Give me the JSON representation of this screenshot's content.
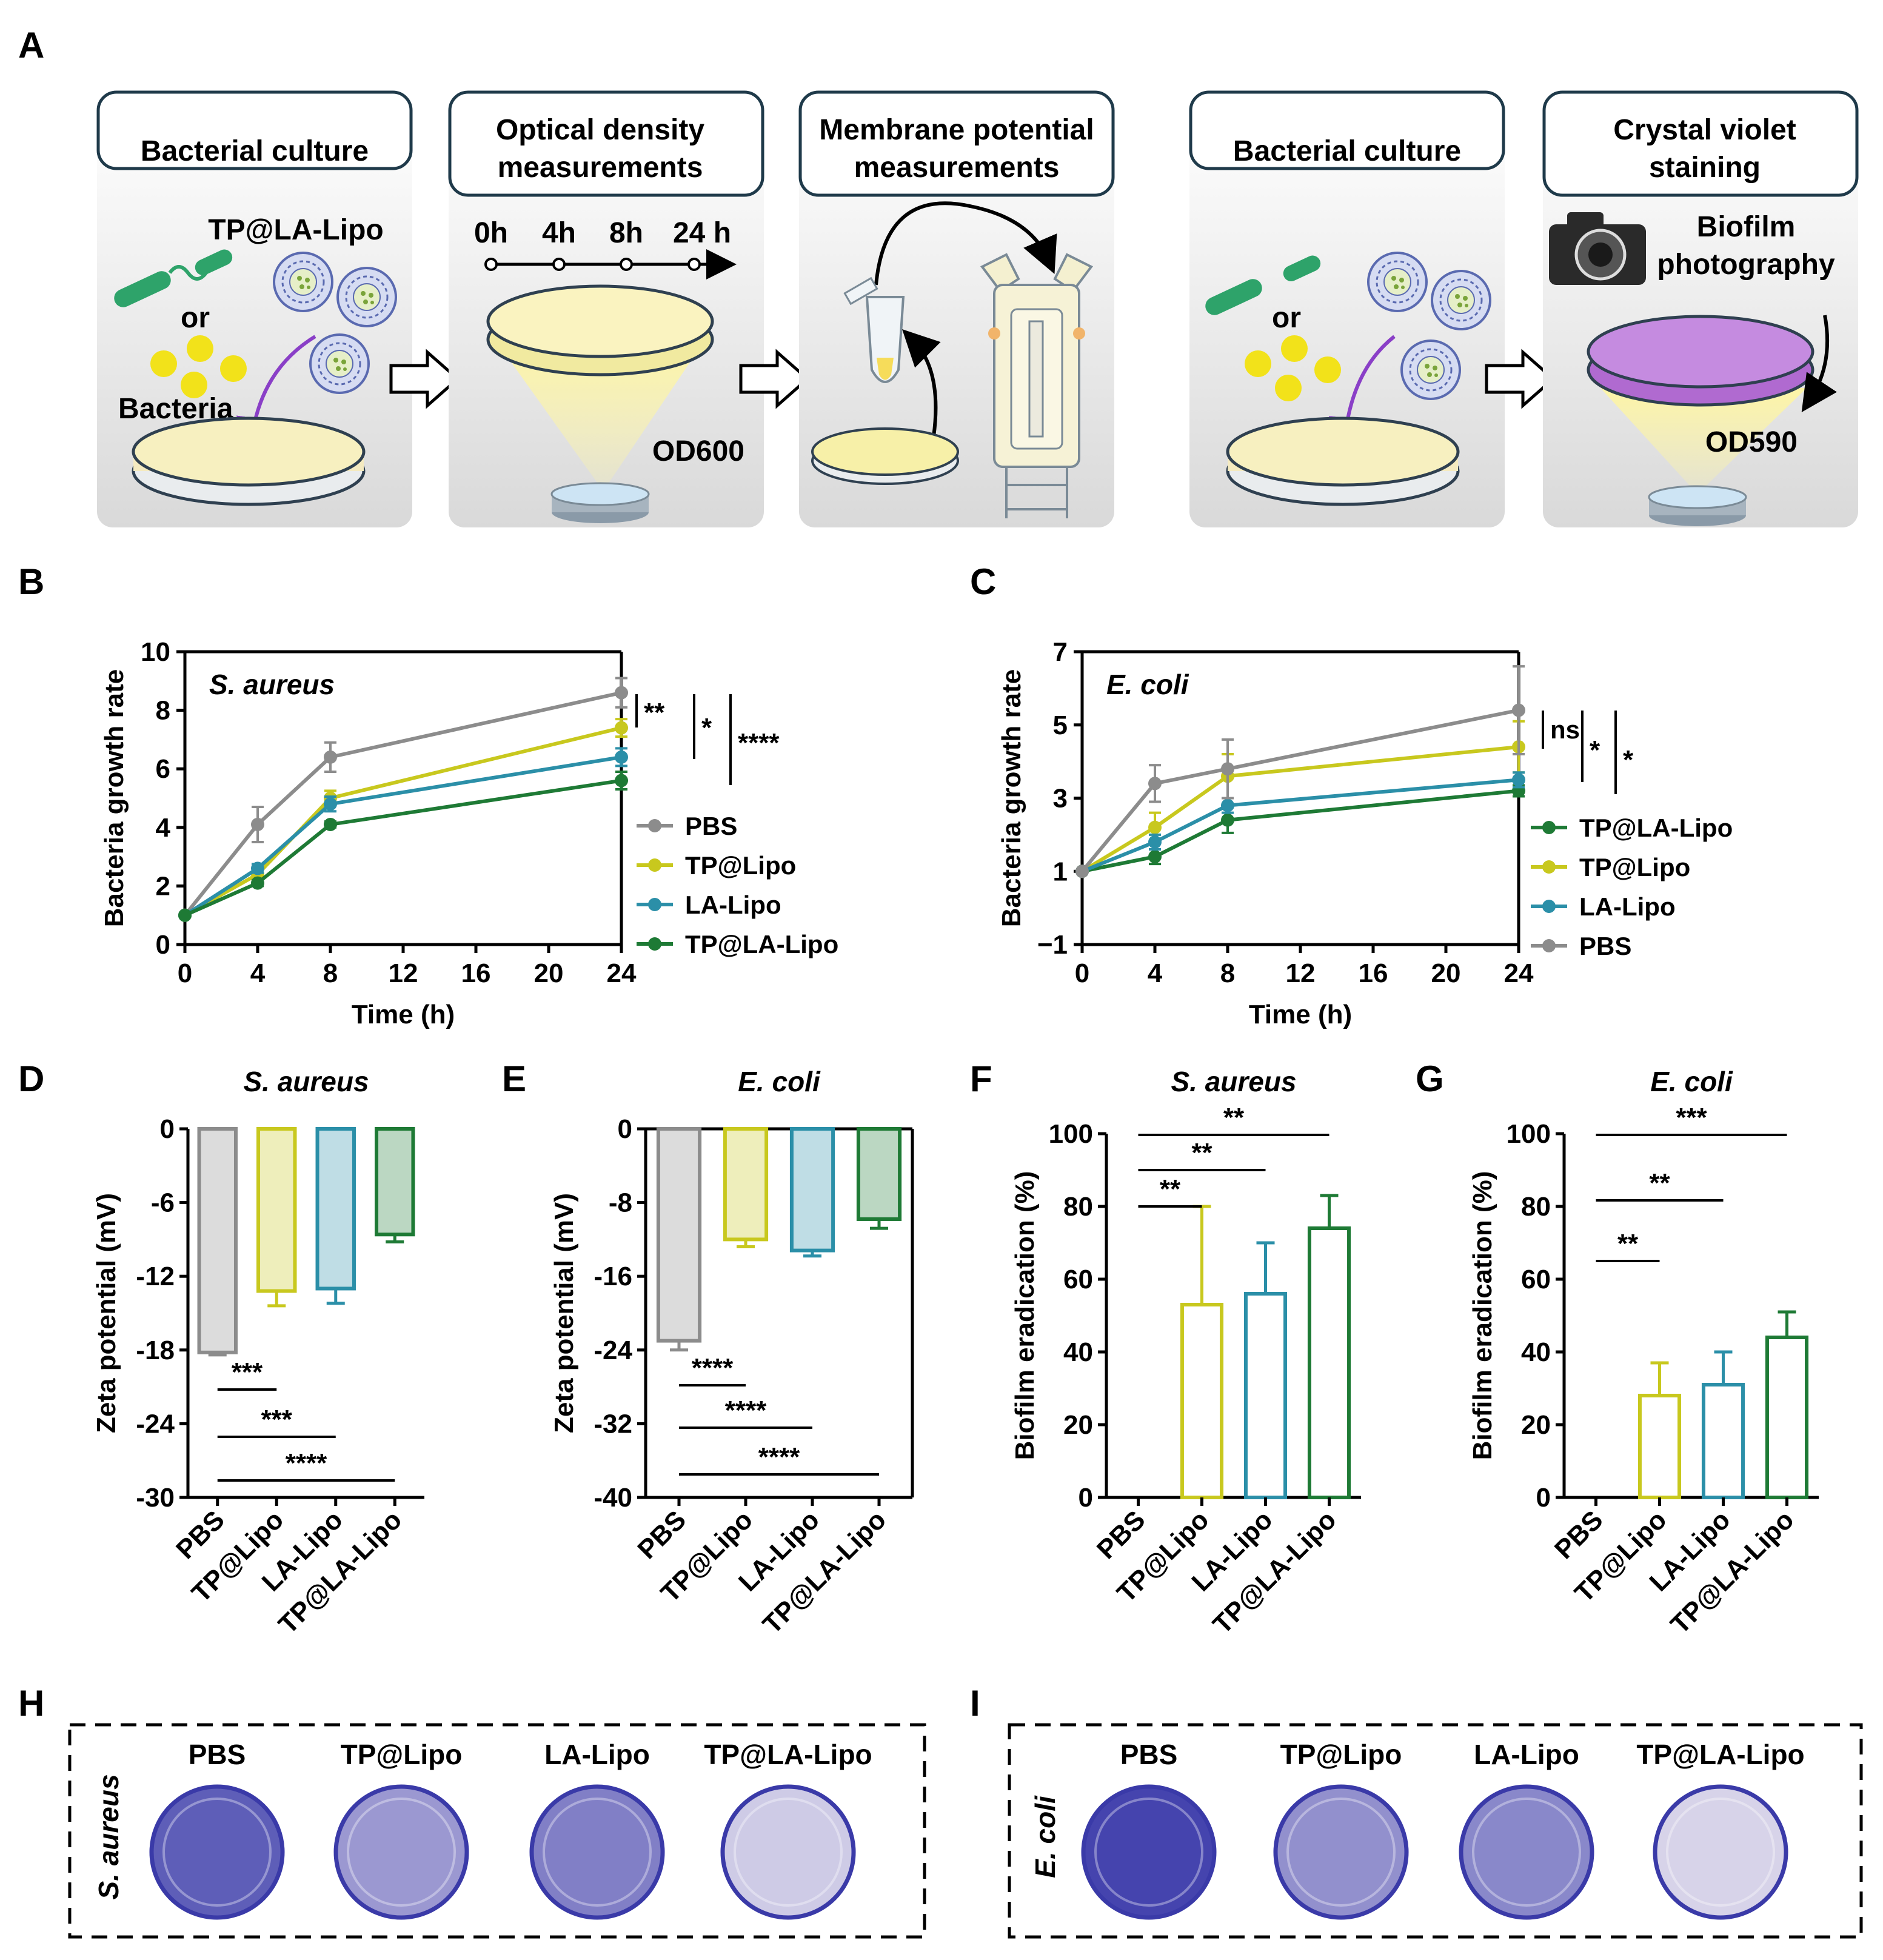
{
  "panels": {
    "A": {
      "letter": "A"
    },
    "B": {
      "letter": "B"
    },
    "C": {
      "letter": "C"
    },
    "D": {
      "letter": "D"
    },
    "E": {
      "letter": "E"
    },
    "F": {
      "letter": "F"
    },
    "G": {
      "letter": "G"
    },
    "H": {
      "letter": "H"
    },
    "I": {
      "letter": "I"
    }
  },
  "schematic": {
    "box1_title": "Bacterial culture",
    "box2_title_1": "Optical density",
    "box2_title_2": "measurements",
    "box3_title_1": "Membrane potential",
    "box3_title_2": "measurements",
    "box4_title": "Bacterial culture",
    "box5_title_1": "Crystal violet",
    "box5_title_2": "staining",
    "tp_la_lipo": "TP@LA-Lipo",
    "or": "or",
    "bacteria": "Bacteria",
    "od600": "OD600",
    "od590": "OD590",
    "timeline": [
      "0h",
      "4h",
      "8h",
      "24 h"
    ],
    "biofilm_1": "Biofilm",
    "biofilm_2": "photography"
  },
  "colors": {
    "pbs": "#8c8c8c",
    "tp_lipo": "#c8c81e",
    "la_lipo": "#2b8fa8",
    "tp_la_lipo": "#1e7a35",
    "well_dark": "#3c3caa",
    "well_light": "#e8e4f0"
  },
  "chart_data": [
    {
      "panel": "B",
      "type": "line",
      "title": "S. aureus",
      "xlabel": "Time (h)",
      "ylabel": "Bacteria growth rate",
      "xlim": [
        0,
        24
      ],
      "ylim": [
        0,
        10
      ],
      "xticks": [
        "0",
        "4",
        "8",
        "12",
        "16",
        "20",
        "24"
      ],
      "yticks": [
        "0",
        "2",
        "4",
        "6",
        "8",
        "10"
      ],
      "x": [
        0,
        4,
        8,
        24
      ],
      "series": [
        {
          "name": "PBS",
          "values": [
            1.0,
            4.1,
            6.4,
            8.6
          ],
          "errors": [
            0.05,
            0.6,
            0.5,
            0.5
          ]
        },
        {
          "name": "TP@Lipo",
          "values": [
            1.0,
            2.4,
            5.0,
            7.4
          ],
          "errors": [
            0.05,
            0.2,
            0.25,
            0.3
          ]
        },
        {
          "name": "LA-Lipo",
          "values": [
            1.0,
            2.6,
            4.8,
            6.4
          ],
          "errors": [
            0.05,
            0.15,
            0.25,
            0.3
          ]
        },
        {
          "name": "TP@LA-Lipo",
          "values": [
            1.0,
            2.1,
            4.1,
            5.6
          ],
          "errors": [
            0.05,
            0.1,
            0.1,
            0.3
          ]
        }
      ],
      "significance": [
        "**",
        "*",
        "****"
      ],
      "legend_order": [
        "PBS",
        "TP@Lipo",
        "LA-Lipo",
        "TP@LA-Lipo"
      ]
    },
    {
      "panel": "C",
      "type": "line",
      "title": "E. coli",
      "xlabel": "Time (h)",
      "ylabel": "Bacteria growth rate",
      "xlim": [
        0,
        24
      ],
      "ylim": [
        -1,
        7
      ],
      "xticks": [
        "0",
        "4",
        "8",
        "12",
        "16",
        "20",
        "24"
      ],
      "yticks": [
        "−1",
        "1",
        "3",
        "5",
        "7"
      ],
      "x": [
        0,
        4,
        8,
        24
      ],
      "series": [
        {
          "name": "TP@LA-Lipo",
          "values": [
            1.0,
            1.4,
            2.4,
            3.2
          ],
          "errors": [
            0.05,
            0.2,
            0.35,
            0.15
          ]
        },
        {
          "name": "TP@Lipo",
          "values": [
            1.0,
            2.2,
            3.6,
            4.4
          ],
          "errors": [
            0.05,
            0.4,
            0.6,
            0.7
          ]
        },
        {
          "name": "LA-Lipo",
          "values": [
            1.0,
            1.8,
            2.8,
            3.5
          ],
          "errors": [
            0.05,
            0.2,
            0.2,
            0.2
          ]
        },
        {
          "name": "PBS",
          "values": [
            1.0,
            3.4,
            3.8,
            5.4
          ],
          "errors": [
            0.05,
            0.5,
            0.8,
            1.2
          ]
        }
      ],
      "significance": [
        "ns",
        "*",
        "*"
      ],
      "legend_order": [
        "TP@LA-Lipo",
        "TP@Lipo",
        "LA-Lipo",
        "PBS"
      ]
    },
    {
      "panel": "D",
      "type": "bar",
      "title": "S. aureus",
      "ylabel": "Zeta potential (mV)",
      "ylim": [
        -30,
        0
      ],
      "yticks": [
        "0",
        "-6",
        "-12",
        "-18",
        "-24",
        "-30"
      ],
      "categories": [
        "PBS",
        "TP@Lipo",
        "LA-Lipo",
        "TP@LA-Lipo"
      ],
      "values": [
        -18.2,
        -13.2,
        -13.0,
        -8.6
      ],
      "errors": [
        0.2,
        1.2,
        1.2,
        0.6
      ],
      "significance": [
        "***",
        "***",
        "****"
      ]
    },
    {
      "panel": "E",
      "type": "bar",
      "title": "E. coli",
      "ylabel": "Zeta potential (mV)",
      "ylim": [
        -40,
        0
      ],
      "yticks": [
        "0",
        "-8",
        "-16",
        "-24",
        "-32",
        "-40"
      ],
      "categories": [
        "PBS",
        "TP@Lipo",
        "LA-Lipo",
        "TP@LA-Lipo"
      ],
      "values": [
        -23.0,
        -12.0,
        -13.2,
        -9.8
      ],
      "errors": [
        1.0,
        0.8,
        0.6,
        1.0
      ],
      "significance": [
        "****",
        "****",
        "****"
      ]
    },
    {
      "panel": "F",
      "type": "bar",
      "title": "S. aureus",
      "ylabel": "Biofilm eradication (%)",
      "ylim": [
        0,
        100
      ],
      "yticks": [
        "0",
        "20",
        "40",
        "60",
        "80",
        "100"
      ],
      "categories": [
        "PBS",
        "TP@Lipo",
        "LA-Lipo",
        "TP@LA-Lipo"
      ],
      "values": [
        0,
        53,
        56,
        74
      ],
      "errors": [
        0,
        27,
        14,
        9
      ],
      "significance": [
        "**",
        "**",
        "**"
      ]
    },
    {
      "panel": "G",
      "type": "bar",
      "title": "E. coli",
      "ylabel": "Biofilm eradication (%)",
      "ylim": [
        0,
        100
      ],
      "yticks": [
        "0",
        "20",
        "40",
        "60",
        "80",
        "100"
      ],
      "categories": [
        "PBS",
        "TP@Lipo",
        "LA-Lipo",
        "TP@LA-Lipo"
      ],
      "values": [
        0,
        28,
        31,
        44
      ],
      "errors": [
        0,
        9,
        9,
        7
      ],
      "significance": [
        "**",
        "**",
        "***"
      ]
    }
  ],
  "wells": {
    "H": {
      "species": "S. aureus",
      "labels": [
        "PBS",
        "TP@Lipo",
        "LA-Lipo",
        "TP@LA-Lipo"
      ],
      "stain_intensity": [
        0.8,
        0.45,
        0.6,
        0.15
      ]
    },
    "I": {
      "species": "E. coli",
      "labels": [
        "PBS",
        "TP@Lipo",
        "LA-Lipo",
        "TP@LA-Lipo"
      ],
      "stain_intensity": [
        0.95,
        0.5,
        0.55,
        0.1
      ]
    }
  }
}
